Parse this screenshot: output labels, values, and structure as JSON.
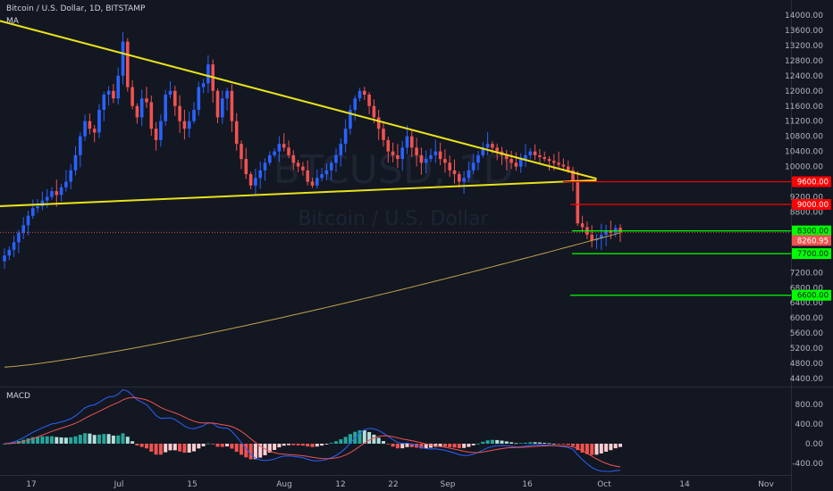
{
  "header": {
    "title": "Bitcoin / U.S. Dollar, 1D, BITSTAMP",
    "indicator": "MA"
  },
  "watermark": {
    "symbol": "BTCUSD, 1D",
    "name": "Bitcoin / U.S. Dollar"
  },
  "macd_label": "MACD",
  "colors": {
    "background": "#131722",
    "up": "#2962ff",
    "down": "#ef5350",
    "trendline": "#e8e21a",
    "ma": "#bfa34a",
    "macd_line": "#2962ff",
    "signal_line": "#ef5350",
    "hist_up": "#26a69a",
    "hist_down": "#ef5350",
    "resistance": "#ff0000",
    "support": "#00ff00"
  },
  "chart_data": [
    {
      "type": "candlestick",
      "x_ticks": [
        "17",
        "Jul",
        "15",
        "Aug",
        "12",
        "22",
        "Sep",
        "16",
        "Oct",
        "14",
        "Nov"
      ],
      "y_ticks": [
        "14000.00",
        "13600.00",
        "13200.00",
        "12800.00",
        "12400.00",
        "12000.00",
        "11600.00",
        "11200.00",
        "10800.00",
        "10400.00",
        "10000.00",
        "9600.00",
        "9200.00",
        "8800.00",
        "8300.00",
        "8260.95",
        "7700.00",
        "7200.00",
        "6800.00",
        "6400.00",
        "6000.00",
        "5600.00",
        "5200.00",
        "4800.00",
        "4400.00"
      ],
      "ylim": [
        4100,
        14300
      ],
      "current_price": 8260.95,
      "price_tags": [
        {
          "label": "9600.00",
          "value": 9600,
          "kind": "resistance"
        },
        {
          "label": "9000.00",
          "value": 9000,
          "kind": "resistance"
        },
        {
          "label": "8300.00",
          "value": 8300,
          "kind": "support"
        },
        {
          "label": "8260.95",
          "value": 8260.95,
          "kind": "current"
        },
        {
          "label": "7700.00",
          "value": 7700,
          "kind": "support"
        },
        {
          "label": "6600.00",
          "value": 6600,
          "kind": "support"
        }
      ],
      "trendlines": [
        {
          "name": "upper",
          "from": [
            -1,
            13850
          ],
          "to": [
            125,
            9680
          ]
        },
        {
          "name": "lower",
          "from": [
            -20,
            8850
          ],
          "to": [
            125,
            9640
          ]
        }
      ],
      "closes": [
        7650,
        7800,
        8000,
        8250,
        8450,
        8700,
        8900,
        8950,
        9100,
        9200,
        9350,
        9250,
        9450,
        9600,
        9900,
        10300,
        10800,
        11200,
        11000,
        10900,
        11500,
        11900,
        12000,
        11800,
        12400,
        13300,
        12100,
        11600,
        11300,
        11800,
        11700,
        11000,
        10700,
        11200,
        11900,
        12000,
        11600,
        11200,
        11000,
        11200,
        11500,
        12100,
        12200,
        12700,
        12000,
        11300,
        11800,
        12000,
        11200,
        10600,
        10200,
        9800,
        9500,
        9700,
        9900,
        10100,
        10300,
        10400,
        10600,
        10500,
        10300,
        10100,
        10000,
        9900,
        9600,
        9500,
        9700,
        9800,
        9900,
        10100,
        10300,
        10600,
        11000,
        11500,
        11800,
        12000,
        11900,
        11600,
        11300,
        11000,
        10700,
        10400,
        10300,
        10200,
        10500,
        10800,
        10500,
        10300,
        10100,
        10200,
        10300,
        10400,
        10200,
        10100,
        9900,
        9800,
        9600,
        9700,
        9900,
        10100,
        10300,
        10500,
        10600,
        10500,
        10400,
        10300,
        10200,
        10100,
        10000,
        10200,
        10300,
        10400,
        10300,
        10250,
        10200,
        10150,
        10100,
        10050,
        10000,
        9900,
        9600,
        8500,
        8400,
        8200,
        8050,
        8100,
        8200,
        8300,
        8250,
        8380,
        8260
      ]
    },
    {
      "type": "line",
      "name": "MACD",
      "y_ticks": [
        "800.00",
        "400.00",
        "0.00",
        "-400.00"
      ],
      "ylim": [
        -600,
        1000
      ]
    }
  ]
}
